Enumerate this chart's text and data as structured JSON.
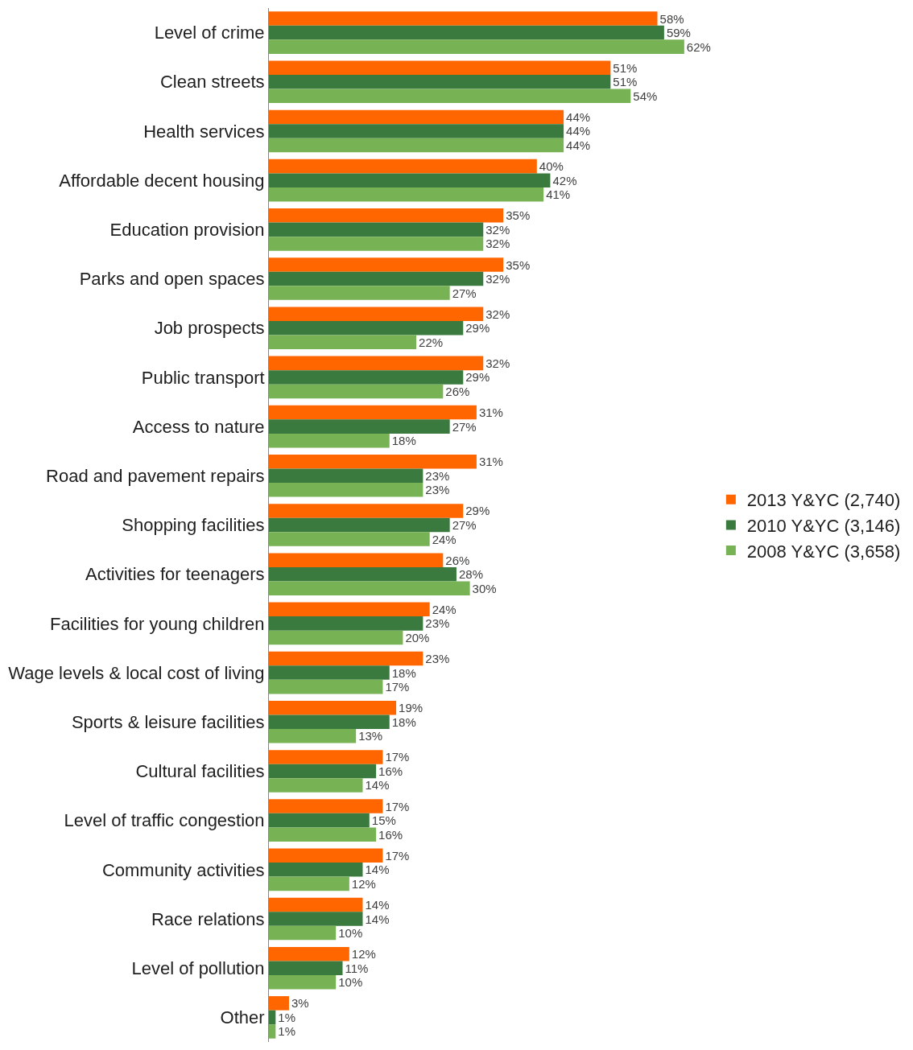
{
  "chart_data": {
    "type": "bar",
    "orientation": "horizontal",
    "legend": "right",
    "categories": [
      "Level of crime",
      "Clean streets",
      "Health services",
      "Affordable decent housing",
      "Education provision",
      "Parks and open spaces",
      "Job prospects",
      "Public transport",
      "Access to nature",
      "Road and pavement repairs",
      "Shopping facilities",
      "Activities for teenagers",
      "Facilities for young children",
      "Wage levels & local cost of living",
      "Sports & leisure facilities",
      "Cultural facilities",
      "Level of traffic congestion",
      "Community activities",
      "Race relations",
      "Level of pollution",
      "Other"
    ],
    "series": [
      {
        "name": "2013 Y&YC (2,740)",
        "color": "#ff6600",
        "values": [
          58,
          51,
          44,
          40,
          35,
          35,
          32,
          32,
          31,
          31,
          29,
          26,
          24,
          23,
          19,
          17,
          17,
          17,
          14,
          12,
          3
        ],
        "value_labels": [
          "58%",
          "51%",
          "44%",
          "40%",
          "35%",
          "35%",
          "32%",
          "32%",
          "31%",
          "31%",
          "29%",
          "26%",
          "24%",
          "23%",
          "19%",
          "17%",
          "17%",
          "17%",
          "14%",
          "12%",
          "3%"
        ]
      },
      {
        "name": "2010 Y&YC (3,146)",
        "color": "#3a7a3e",
        "values": [
          59,
          51,
          44,
          42,
          32,
          32,
          29,
          29,
          27,
          23,
          27,
          28,
          23,
          18,
          18,
          16,
          15,
          14,
          14,
          11,
          1
        ],
        "value_labels": [
          "59%",
          "51%",
          "44%",
          "42%",
          "32%",
          "32%",
          "29%",
          "29%",
          "27%",
          "23%",
          "27%",
          "28%",
          "23%",
          "18%",
          "18%",
          "16%",
          "15%",
          "14%",
          "14%",
          "11%",
          "1%"
        ]
      },
      {
        "name": "2008 Y&YC (3,658)",
        "color": "#77b255",
        "values": [
          62,
          54,
          44,
          41,
          32,
          27,
          22,
          26,
          18,
          23,
          24,
          30,
          20,
          17,
          13,
          14,
          16,
          12,
          10,
          10,
          1
        ],
        "value_labels": [
          "62%",
          "54%",
          "44%",
          "41%",
          "32%",
          "27%",
          "22%",
          "26%",
          "18%",
          "23%",
          "24%",
          "30%",
          "20%",
          "17%",
          "13%",
          "14%",
          "16%",
          "12%",
          "10%",
          "10%",
          "1%"
        ]
      }
    ]
  }
}
